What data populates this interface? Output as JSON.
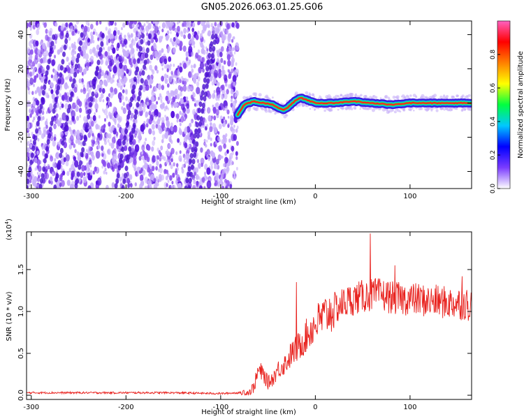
{
  "title": "GN05.2026.063.01.25.G06",
  "colors": {
    "snr_line": "#e8201c",
    "spectrogram_hue": "#6a2be0",
    "axis": "#000000",
    "background": "#ffffff"
  },
  "chart_data": [
    {
      "type": "heatmap",
      "name": "spectrogram",
      "xlabel": "Height of straight line (km)",
      "ylabel": "Frequency (Hz)",
      "xlim": [
        -305,
        165
      ],
      "ylim": [
        -50,
        48
      ],
      "x_ticks": [
        -300,
        -200,
        -100,
        0,
        100
      ],
      "x_tick_labels": [
        "-300",
        "-200",
        "-100",
        "0",
        "100"
      ],
      "y_ticks": [
        -40,
        -20,
        0,
        20,
        40
      ],
      "y_tick_labels": [
        "-40",
        "-20",
        "0",
        "20",
        "40"
      ],
      "noise_region_x": [
        -305,
        -82
      ],
      "signal_start_x": -82,
      "signal_track": {
        "x": [
          -82,
          -75,
          -65,
          -55,
          -45,
          -38,
          -33,
          -28,
          -20,
          -15,
          -10,
          0,
          20,
          40,
          60,
          80,
          100,
          120,
          140,
          165
        ],
        "frequency": [
          -7,
          -1,
          1,
          0,
          -1,
          -3,
          -4,
          -2,
          2,
          3,
          2,
          0,
          0,
          1,
          0,
          -1,
          0,
          0,
          0,
          0
        ]
      },
      "colorbar": {
        "label": "Normalized spectral amplitude",
        "range": [
          0.0,
          1.0
        ],
        "ticks": [
          0.0,
          0.2,
          0.4,
          0.6,
          0.8
        ],
        "tick_labels": [
          "0.0",
          "0.2",
          "0.4",
          "0.6",
          "0.8"
        ],
        "colormap": [
          "#ffffff",
          "#7a3cff",
          "#0000ff",
          "#00c8ff",
          "#00ff40",
          "#ffff00",
          "#ff8000",
          "#ff0000",
          "#ff60c0"
        ]
      }
    },
    {
      "type": "line",
      "name": "snr",
      "xlabel": "Height of straight line (km)",
      "ylabel": "SNR (10 * v/v)",
      "scale_label": "(x10",
      "scale_exponent": "4",
      "xlim": [
        -305,
        165
      ],
      "ylim": [
        -0.05,
        1.95
      ],
      "x_ticks": [
        -300,
        -200,
        -100,
        0,
        100
      ],
      "x_tick_labels": [
        "-300",
        "-200",
        "-100",
        "0",
        "100"
      ],
      "y_ticks": [
        0.0,
        0.5,
        1.0,
        1.5
      ],
      "y_tick_labels": [
        "0.0",
        "0.5",
        "1.0",
        "1.5"
      ],
      "series": [
        {
          "name": "SNR",
          "x": [
            -305,
            -280,
            -250,
            -200,
            -150,
            -100,
            -80,
            -70,
            -65,
            -60,
            -55,
            -50,
            -45,
            -40,
            -35,
            -30,
            -25,
            -20,
            -15,
            -10,
            -5,
            0,
            10,
            20,
            30,
            40,
            50,
            60,
            70,
            80,
            90,
            100,
            110,
            120,
            130,
            140,
            150,
            165
          ],
          "y": [
            0.03,
            0.03,
            0.03,
            0.03,
            0.03,
            0.02,
            0.03,
            0.03,
            0.1,
            0.3,
            0.25,
            0.15,
            0.2,
            0.3,
            0.35,
            0.4,
            0.5,
            0.55,
            0.62,
            0.7,
            0.78,
            0.85,
            0.95,
            1.03,
            1.1,
            1.15,
            1.18,
            1.2,
            1.2,
            1.17,
            1.15,
            1.15,
            1.14,
            1.12,
            1.12,
            1.1,
            1.1,
            1.08
          ]
        }
      ],
      "peaks": [
        {
          "x": -20,
          "y": 1.35
        },
        {
          "x": 58,
          "y": 1.93
        },
        {
          "x": 84,
          "y": 1.55
        },
        {
          "x": 155,
          "y": 1.42
        }
      ]
    }
  ]
}
